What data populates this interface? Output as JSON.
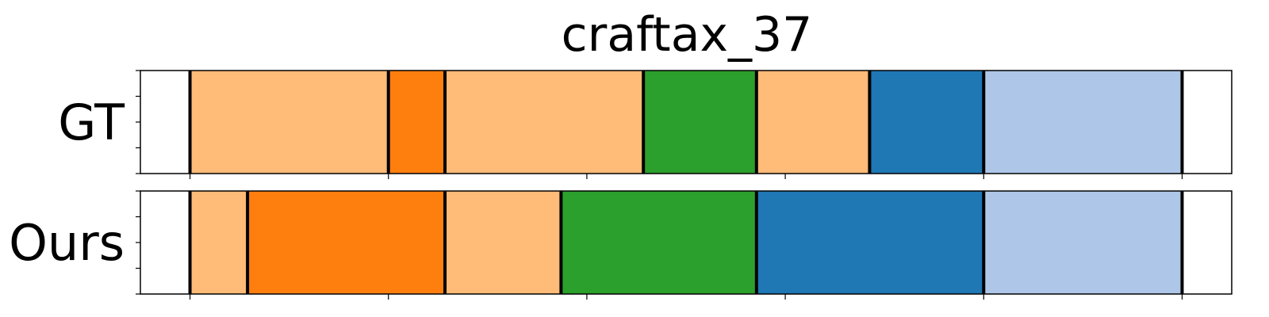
{
  "chart_data": {
    "type": "bar",
    "title": "craftax_37",
    "xlim": [
      0,
      11
    ],
    "rows": [
      {
        "label": "GT",
        "segments": [
          {
            "start": 0.5,
            "end": 2.5,
            "color": "#ffbb78"
          },
          {
            "start": 2.5,
            "end": 3.07,
            "color": "#ff7f0e"
          },
          {
            "start": 3.07,
            "end": 5.07,
            "color": "#ffbb78"
          },
          {
            "start": 5.07,
            "end": 6.21,
            "color": "#2ca02c"
          },
          {
            "start": 6.21,
            "end": 7.35,
            "color": "#ffbb78"
          },
          {
            "start": 7.35,
            "end": 8.5,
            "color": "#1f77b4"
          },
          {
            "start": 8.5,
            "end": 10.5,
            "color": "#aec7e8"
          }
        ]
      },
      {
        "label": "Ours",
        "segments": [
          {
            "start": 0.5,
            "end": 1.08,
            "color": "#ffbb78"
          },
          {
            "start": 1.08,
            "end": 3.07,
            "color": "#ff7f0e"
          },
          {
            "start": 3.07,
            "end": 4.24,
            "color": "#ffbb78"
          },
          {
            "start": 4.24,
            "end": 6.21,
            "color": "#2ca02c"
          },
          {
            "start": 6.21,
            "end": 8.5,
            "color": "#1f77b4"
          },
          {
            "start": 8.5,
            "end": 10.5,
            "color": "#aec7e8"
          }
        ]
      }
    ],
    "xticks": [
      0.5,
      2.5,
      4.5,
      6.5,
      8.5,
      10.5
    ],
    "xticklabels_visible": false,
    "boundary_color": "#000000"
  }
}
